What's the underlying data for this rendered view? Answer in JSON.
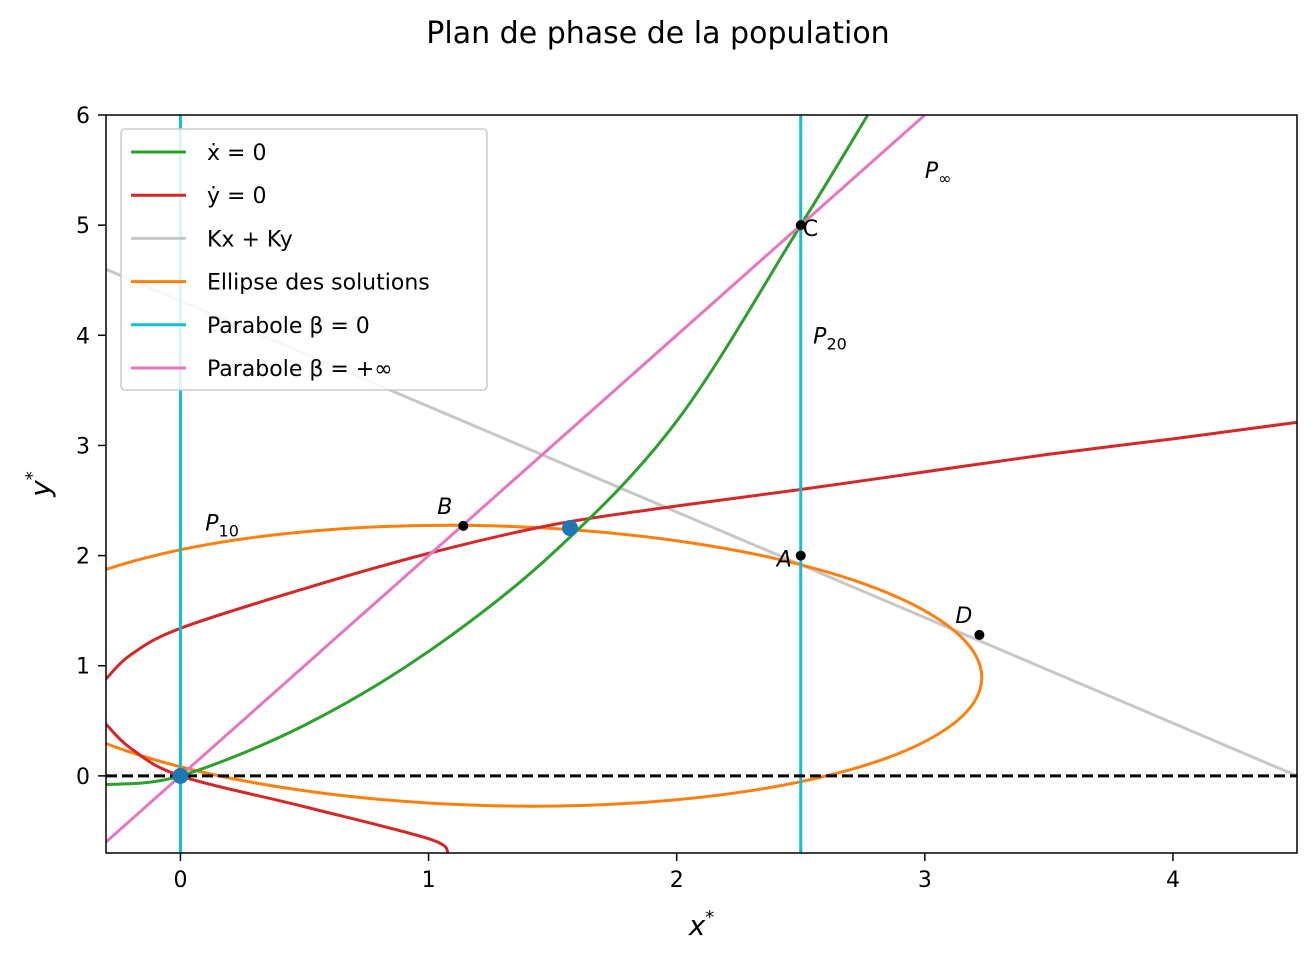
{
  "chart_data": {
    "type": "line",
    "title": "Plan de phase de la population",
    "xlabel": "x*",
    "ylabel": "y*",
    "xlim": [
      -0.3,
      4.5
    ],
    "ylim": [
      -0.7,
      6
    ],
    "xticks": [
      0,
      1,
      2,
      3,
      4
    ],
    "yticks": [
      0,
      1,
      2,
      3,
      4,
      5,
      6
    ],
    "grid": false,
    "legend_position": "top-left",
    "colors": {
      "xdot": "#2ca02c",
      "ydot": "#d62728",
      "kxky": "#c7c7c7",
      "ellipse": "#ff7f0e",
      "beta0": "#17becf",
      "betainf": "#e377c2",
      "axis_line": "#000000",
      "equilibrium": "#1f77b4"
    },
    "series": [
      {
        "name": "ẋ = 0",
        "key": "xdot",
        "kind": "curve",
        "x": [
          -0.3,
          0,
          0.5,
          1,
          1.5,
          2,
          2.5,
          2.77
        ],
        "y": [
          -0.08,
          0,
          0.46,
          1.13,
          2.02,
          3.22,
          5.0,
          6.0
        ]
      },
      {
        "name": "ẏ = 0",
        "key": "ydot",
        "kind": "curve",
        "upper": {
          "x": [
            -0.3,
            -0.2,
            0,
            0.5,
            1,
            1.5,
            2,
            2.5,
            3,
            3.5,
            4,
            4.5
          ],
          "y": [
            0.88,
            1.1,
            1.34,
            1.7,
            2.02,
            2.28,
            2.45,
            2.6,
            2.76,
            2.92,
            3.06,
            3.21
          ]
        },
        "lower": {
          "x": [
            -0.3,
            -0.2,
            0,
            0.5,
            1,
            1.08
          ],
          "y": [
            0.47,
            0.25,
            0.0,
            -0.28,
            -0.57,
            -0.7
          ]
        }
      },
      {
        "name": "Kx + Ky",
        "key": "kxky",
        "kind": "line",
        "x": [
          -0.3,
          4.5
        ],
        "y": [
          4.6,
          0.0
        ]
      },
      {
        "name": "Ellipse des solutions",
        "key": "ellipse",
        "kind": "ellipse",
        "center": [
          1.25,
          1.0
        ],
        "semi_x": 1.98,
        "semi_y": 1.27,
        "rotation_deg": 1.5
      },
      {
        "name": "Parabole β = 0",
        "key": "beta0",
        "kind": "vlines",
        "x": [
          0,
          2.5
        ]
      },
      {
        "name": "Parabole β = +∞",
        "key": "betainf",
        "kind": "line",
        "x": [
          -0.3,
          3.0
        ],
        "y": [
          -0.6,
          6.0
        ]
      }
    ],
    "horizontal_reference": {
      "y": 0,
      "style": "dashed"
    },
    "points": [
      {
        "label": "A",
        "x": 2.5,
        "y": 2.0
      },
      {
        "label": "B",
        "x": 1.14,
        "y": 2.27
      },
      {
        "label": "C",
        "x": 2.5,
        "y": 5.0
      },
      {
        "label": "D",
        "x": 3.22,
        "y": 1.28
      }
    ],
    "equilibrium_points": [
      {
        "x": 1.57,
        "y": 2.25
      },
      {
        "x": 0,
        "y": 0
      }
    ],
    "annotations": [
      {
        "text": "P∞",
        "x": 3.0,
        "y": 5.5
      },
      {
        "text": "P20",
        "x": 2.55,
        "y": 4.0
      },
      {
        "text": "P10",
        "x": 0.1,
        "y": 2.3
      }
    ]
  }
}
